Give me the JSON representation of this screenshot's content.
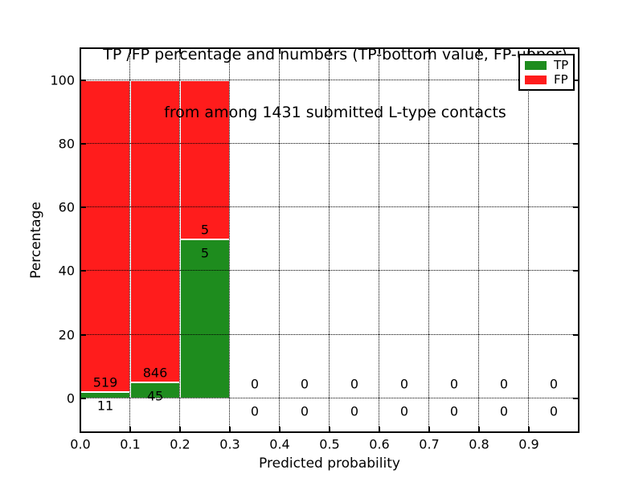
{
  "chart_data": {
    "type": "bar",
    "stacked_percentage": true,
    "title_lines": [
      "TP /FP percentage and numbers (TP-bottom value, FP-upper)",
      "from among 1431 submitted L-type contacts"
    ],
    "xlabel": "Predicted probability",
    "ylabel": "Percentage",
    "xlim": [
      0.0,
      1.0
    ],
    "ylim_pct": [
      -11,
      110
    ],
    "bin_width": 0.1,
    "categories": [
      "0.0-0.1",
      "0.1-0.2",
      "0.2-0.3",
      "0.3-0.4",
      "0.4-0.5",
      "0.5-0.6",
      "0.6-0.7",
      "0.7-0.8",
      "0.8-0.9",
      "0.9-1.0"
    ],
    "series": [
      {
        "name": "TP",
        "color": "#1e8c1e",
        "counts": [
          11,
          45,
          5,
          0,
          0,
          0,
          0,
          0,
          0,
          0
        ]
      },
      {
        "name": "FP",
        "color": "#ff1c1c",
        "counts": [
          519,
          846,
          5,
          0,
          0,
          0,
          0,
          0,
          0,
          0
        ]
      }
    ],
    "tp_percent_of_bin": [
      2.08,
      5.05,
      50.0,
      0,
      0,
      0,
      0,
      0,
      0,
      0
    ],
    "x_tick_labels": [
      "0.0",
      "0.1",
      "0.2",
      "0.3",
      "0.4",
      "0.5",
      "0.6",
      "0.7",
      "0.8",
      "0.9"
    ],
    "y_tick_labels": [
      "0",
      "20",
      "40",
      "60",
      "80",
      "100"
    ],
    "y_tick_values": [
      0,
      20,
      40,
      60,
      80,
      100
    ],
    "x_tick_values": [
      0.0,
      0.1,
      0.2,
      0.3,
      0.4,
      0.5,
      0.6,
      0.7,
      0.8,
      0.9
    ],
    "grid": "dotted",
    "legend_position": "upper right",
    "bar_edge_color": "#ffffff",
    "colors": {
      "tp": "#1e8c1e",
      "fp": "#ff1c1c",
      "grid": "#000000",
      "text": "#000000",
      "background": "#ffffff"
    },
    "legend": {
      "entries": [
        {
          "label": "TP",
          "color": "#1e8c1e"
        },
        {
          "label": "FP",
          "color": "#ff1c1c"
        }
      ]
    }
  }
}
